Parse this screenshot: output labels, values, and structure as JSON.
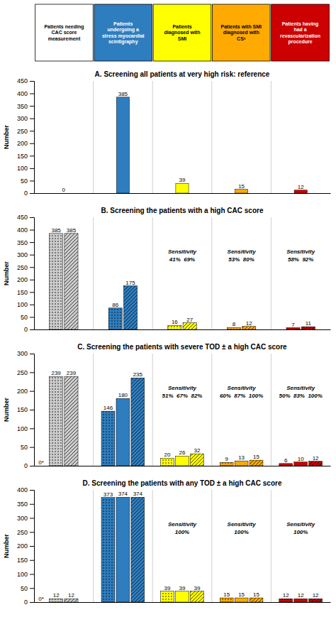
{
  "chart_data": [
    {
      "type": "header",
      "categories": [
        "Patients needing\nCAC score\nmeasurement",
        "Patients\nundergoing a\nstress myocardial\nscintigraphy",
        "Patients\ndiagnosed with\nSMI",
        "Patients with SMI\ndiagnosed with\nCSᵃ",
        "Patients having\nhad a\nrevascularization\nprocedure"
      ],
      "colors": [
        "#ffffff",
        "#2e7ebf",
        "#ffff00",
        "#ffaa00",
        "#cc0000"
      ]
    },
    {
      "type": "bar",
      "title": "A. Screening all patients at very high risk: reference",
      "ylabel": "Number",
      "categories": [
        null,
        null,
        null,
        null,
        null
      ],
      "series": [
        {
          "values": [
            0,
            385,
            39,
            15,
            12
          ],
          "colors": [
            "none",
            "#2e7ebf",
            "#ffff00",
            "#ffaa00",
            "#cc0000"
          ]
        }
      ],
      "ylim": [
        0,
        450
      ],
      "yticks": [
        0,
        50,
        100,
        150,
        200,
        250,
        300,
        350,
        400,
        450
      ],
      "data_labels": true,
      "grid": false
    },
    {
      "type": "bar",
      "title": "B. Screening the patients with a high CAC score",
      "ylabel": "Number",
      "categories": [
        null,
        null,
        null,
        null,
        null
      ],
      "series": [
        {
          "values": [
            385,
            86,
            16,
            8,
            7
          ],
          "colors": [
            "#cccccc",
            "#2e7ebf",
            "#ffff00",
            "#ffaa00",
            "#cc0000"
          ],
          "line_style": "dotted"
        },
        {
          "values": [
            385,
            175,
            27,
            12,
            11
          ],
          "colors": [
            "#cccccc",
            "#2e7ebf",
            "#ffff00",
            "#ffaa00",
            "#cc0000"
          ],
          "line_style": "hatched"
        }
      ],
      "annotations": [
        {
          "category": 2,
          "text": "Sensitivity"
        },
        {
          "category": 2,
          "text": "41%  69%"
        },
        {
          "category": 3,
          "text": "Sensitivity"
        },
        {
          "category": 3,
          "text": "53%  80%"
        },
        {
          "category": 4,
          "text": "Sensitivity"
        },
        {
          "category": 4,
          "text": "58%  92%"
        }
      ],
      "ylim": [
        0,
        450
      ],
      "yticks": [
        0,
        50,
        100,
        150,
        200,
        250,
        300,
        350,
        400,
        450
      ],
      "data_labels": true,
      "grid": false
    },
    {
      "type": "bar",
      "title": "C. Screening the patients with severe TOD ± a high CAC score",
      "ylabel": "Number",
      "categories": [
        null,
        null,
        null,
        null,
        null
      ],
      "series": [
        {
          "values": [
            239,
            146,
            20,
            9,
            6
          ],
          "colors": [
            "#cccccc",
            "#2e7ebf",
            "#ffff00",
            "#ffaa00",
            "#cc0000"
          ],
          "line_style": "dotted"
        },
        {
          "values": [
            null,
            180,
            26,
            13,
            10
          ],
          "colors": [
            null,
            "#2e7ebf",
            "#ffff00",
            "#ffaa00",
            "#cc0000"
          ],
          "line_style": "solid"
        },
        {
          "values": [
            239,
            235,
            32,
            15,
            12
          ],
          "colors": [
            "#cccccc",
            "#2e7ebf",
            "#ffff00",
            "#ffaa00",
            "#cc0000"
          ],
          "line_style": "hatched"
        }
      ],
      "annotations": [
        {
          "category": 0,
          "y": 0,
          "text": "0*"
        },
        {
          "category": 2,
          "text": "Sensitivity"
        },
        {
          "category": 2,
          "text": "51%  67%  82%"
        },
        {
          "category": 3,
          "text": "Sensitivity"
        },
        {
          "category": 3,
          "text": "60%  87%  100%"
        },
        {
          "category": 4,
          "text": "Sensitivity"
        },
        {
          "category": 4,
          "text": "50%  83%  100%"
        }
      ],
      "ylim": [
        0,
        300
      ],
      "yticks": [
        0,
        50,
        100,
        150,
        200,
        250,
        300
      ],
      "data_labels": true,
      "grid": false
    },
    {
      "type": "bar",
      "title": "D. Screening the patients with any TOD ± a high CAC score",
      "ylabel": "Number",
      "categories": [
        null,
        null,
        null,
        null,
        null
      ],
      "series": [
        {
          "values": [
            12,
            373,
            39,
            15,
            12
          ],
          "colors": [
            "#cccccc",
            "#2e7ebf",
            "#ffff00",
            "#ffaa00",
            "#cc0000"
          ],
          "line_style": "dotted"
        },
        {
          "values": [
            null,
            374,
            39,
            15,
            12
          ],
          "colors": [
            null,
            "#2e7ebf",
            "#ffff00",
            "#ffaa00",
            "#cc0000"
          ],
          "line_style": "solid"
        },
        {
          "values": [
            12,
            374,
            39,
            15,
            12
          ],
          "colors": [
            "#cccccc",
            "#2e7ebf",
            "#ffff00",
            "#ffaa00",
            "#cc0000"
          ],
          "line_style": "hatched"
        }
      ],
      "annotations": [
        {
          "category": 0,
          "y": 0,
          "text": "0*"
        },
        {
          "category": 2,
          "text": "Sensitivity"
        },
        {
          "category": 2,
          "text": "100%"
        },
        {
          "category": 3,
          "text": "Sensitivity"
        },
        {
          "category": 3,
          "text": "100%"
        },
        {
          "category": 4,
          "text": "Sensitivity"
        },
        {
          "category": 4,
          "text": "100%"
        }
      ],
      "ylim": [
        0,
        400
      ],
      "yticks": [
        0,
        50,
        100,
        150,
        200,
        250,
        300,
        350,
        400
      ],
      "data_labels": true,
      "grid": false
    }
  ]
}
